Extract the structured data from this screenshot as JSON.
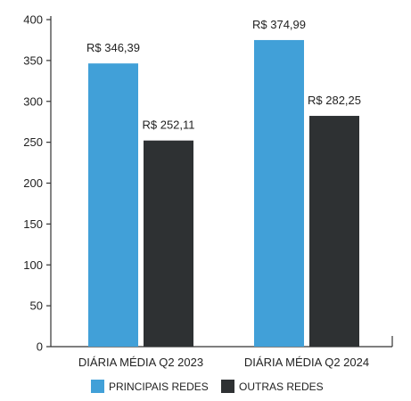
{
  "chart_data": {
    "type": "bar",
    "categories": [
      "DIÁRIA MÉDIA Q2 2023",
      "DIÁRIA MÉDIA Q2 2024"
    ],
    "series": [
      {
        "name": "PRINCIPAIS REDES",
        "values": [
          346.39,
          374.99
        ],
        "labels": [
          "R$ 346,39",
          "R$ 374,99"
        ],
        "color": "#41a0d8"
      },
      {
        "name": "OUTRAS REDES",
        "values": [
          252.11,
          282.25
        ],
        "labels": [
          "R$ 252,11",
          "R$ 282,25"
        ],
        "color": "#2e3133"
      }
    ],
    "ylim": [
      0,
      400
    ],
    "yticks": [
      "0",
      "50",
      "100",
      "150",
      "200",
      "250",
      "300",
      "350",
      "400"
    ],
    "title": "",
    "xlabel": "",
    "ylabel": "",
    "grid": false,
    "legend_position": "bottom"
  }
}
